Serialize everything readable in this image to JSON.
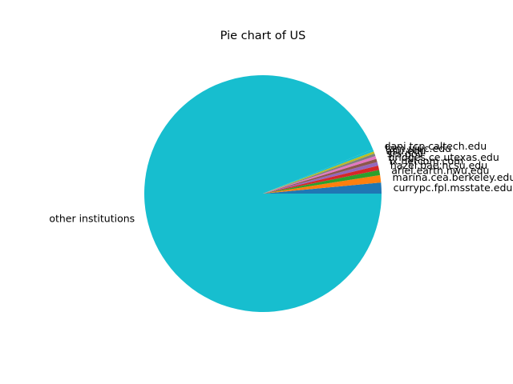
{
  "chart_data": {
    "type": "pie",
    "title": "Pie chart of US",
    "slices": [
      {
        "label": "currypc.fpl.msstate.edu",
        "value": 1.5,
        "color": "#1f77b4"
      },
      {
        "label": "marina.cea.berkeley.edu",
        "value": 1.0,
        "color": "#ff7f0e"
      },
      {
        "label": "ariel.earth.nwu.edu",
        "value": 0.7,
        "color": "#2ca02c"
      },
      {
        "label": "hazel.bae.ncsu.edu",
        "value": 0.6,
        "color": "#d62728"
      },
      {
        "label": "ix.netcom.com",
        "value": 0.5,
        "color": "#9467bd"
      },
      {
        "label": "bridges.ce.utexas.edu",
        "value": 0.45,
        "color": "#8c564b"
      },
      {
        "label": "srs.gov",
        "value": 0.4,
        "color": "#e377c2"
      },
      {
        "label": "asu.edu",
        "value": 0.35,
        "color": "#7f7f7f"
      },
      {
        "label": "tam.uiuc.edu",
        "value": 0.3,
        "color": "#bcbd22"
      },
      {
        "label": "dani.tcp.caltech.edu",
        "value": 0.3,
        "color": "#17becf"
      },
      {
        "label": "other institutions",
        "value": 94.0,
        "color": "#17becf"
      }
    ]
  }
}
